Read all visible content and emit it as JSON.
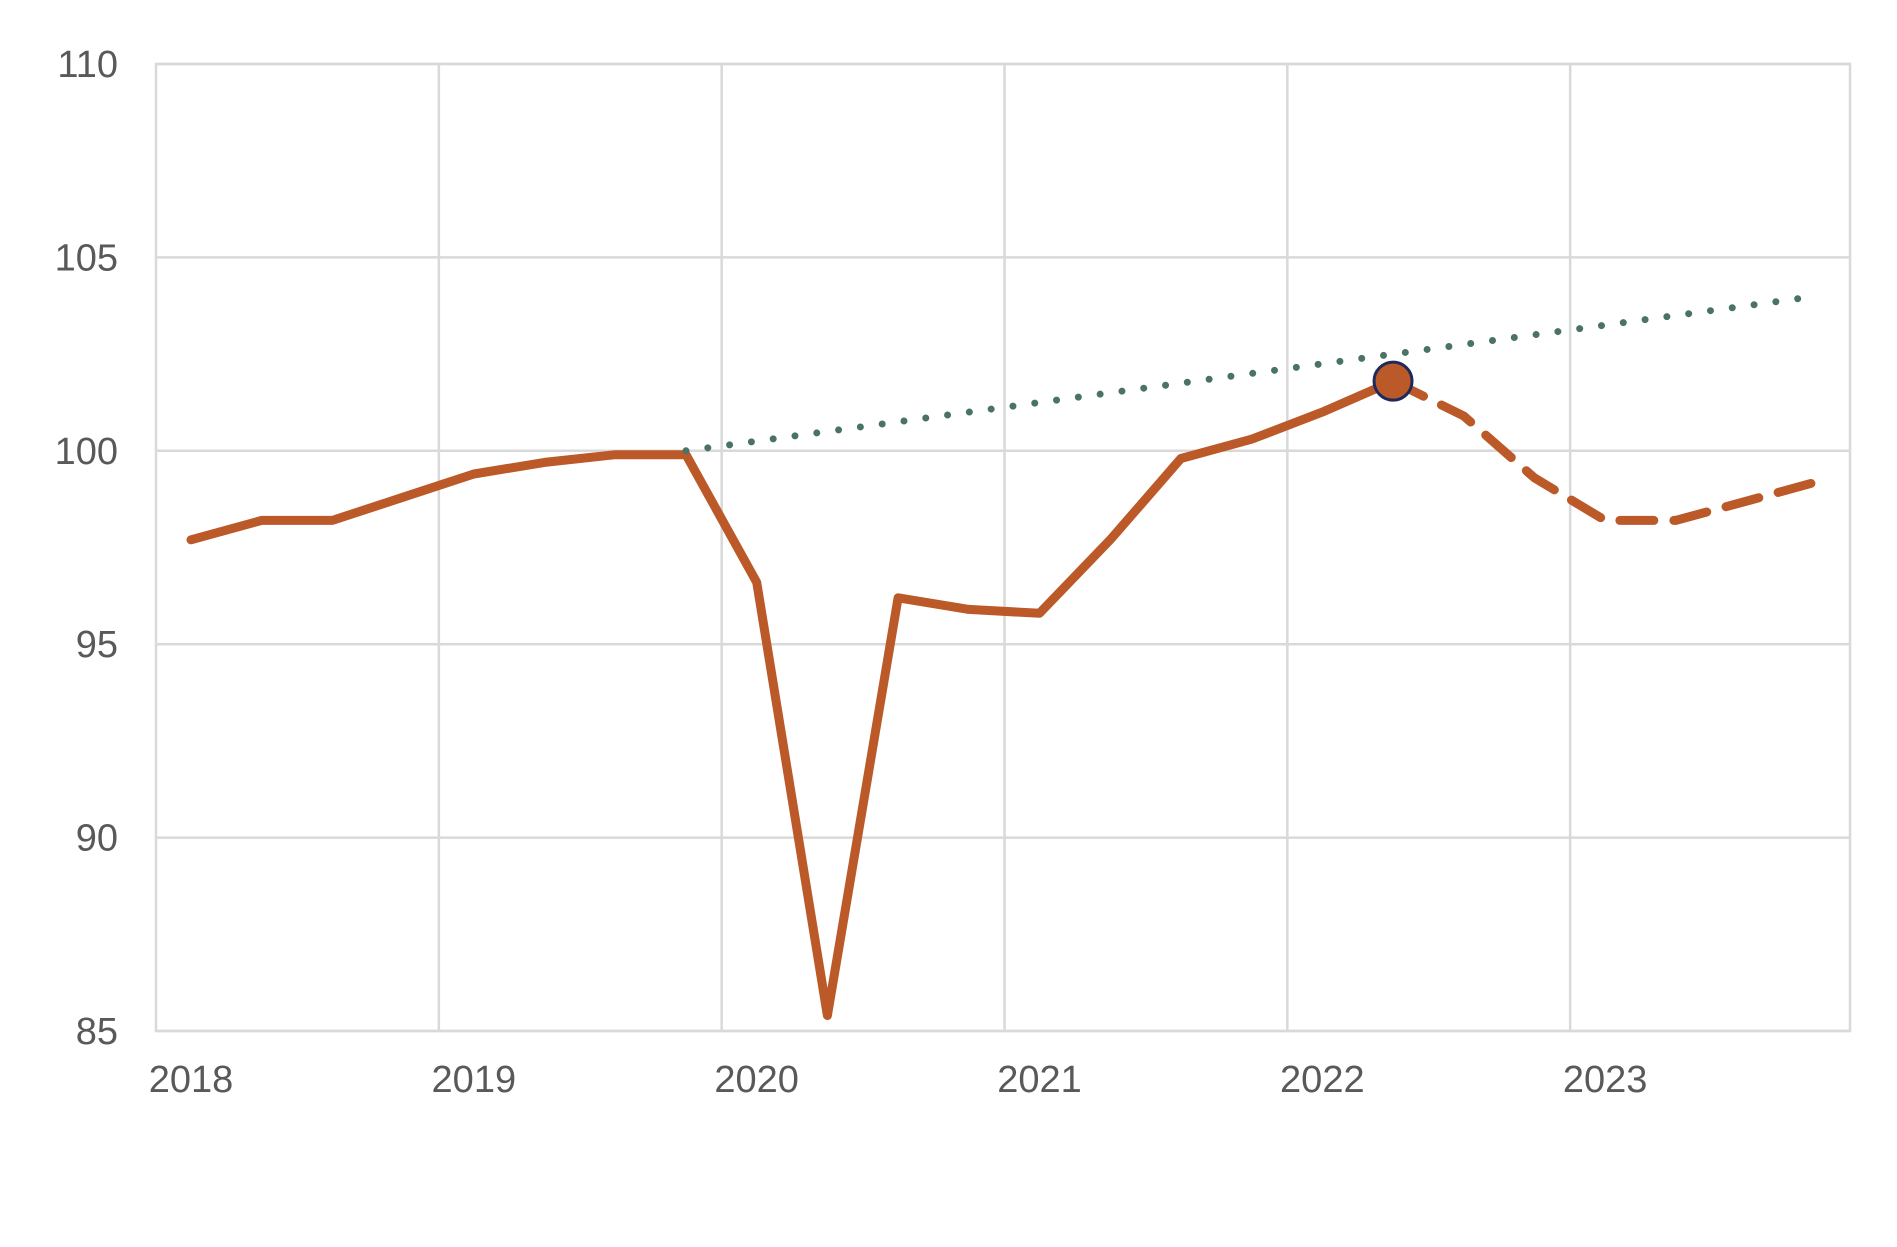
{
  "chart_data": {
    "type": "line",
    "title": "",
    "xlabel": "",
    "ylabel": "",
    "xlim": [
      2018,
      2024
    ],
    "ylim": [
      85,
      110
    ],
    "x_ticks": [
      "2018",
      "2019",
      "2020",
      "2021",
      "2022",
      "2023"
    ],
    "y_ticks": [
      "85",
      "90",
      "95",
      "100",
      "105",
      "110"
    ],
    "grid": true,
    "legend": "none",
    "colors": {
      "actual": "#bb5a28",
      "trend": "#4a7265",
      "marker_stroke": "#1f2a5c",
      "grid": "#d9d9d9",
      "text": "#595959"
    },
    "series": [
      {
        "style": "solid",
        "color": "#bb5a28",
        "x": [
          2018.0,
          2018.25,
          2018.5,
          2018.75,
          2019.0,
          2019.25,
          2019.5,
          2019.75,
          2020.0,
          2020.25,
          2020.5,
          2020.75,
          2021.0,
          2021.25,
          2021.5,
          2021.75,
          2022.0,
          2022.25
        ],
        "values": [
          97.7,
          98.2,
          98.2,
          98.8,
          99.4,
          99.7,
          99.9,
          99.9,
          96.6,
          85.4,
          96.2,
          95.9,
          95.8,
          97.7,
          99.8,
          100.3,
          101.0,
          101.8
        ]
      },
      {
        "style": "dashed",
        "color": "#bb5a28",
        "x": [
          2022.25,
          2022.5,
          2022.75,
          2023.0,
          2023.25,
          2023.5,
          2023.75
        ],
        "values": [
          101.8,
          100.9,
          99.3,
          98.2,
          98.2,
          98.7,
          99.2
        ]
      },
      {
        "style": "dotted",
        "color": "#4a7265",
        "x": [
          2019.75,
          2023.75
        ],
        "values": [
          100.0,
          104.0
        ]
      }
    ],
    "marker": {
      "x": 2022.25,
      "y": 101.8,
      "color": "#bb5a28"
    }
  }
}
